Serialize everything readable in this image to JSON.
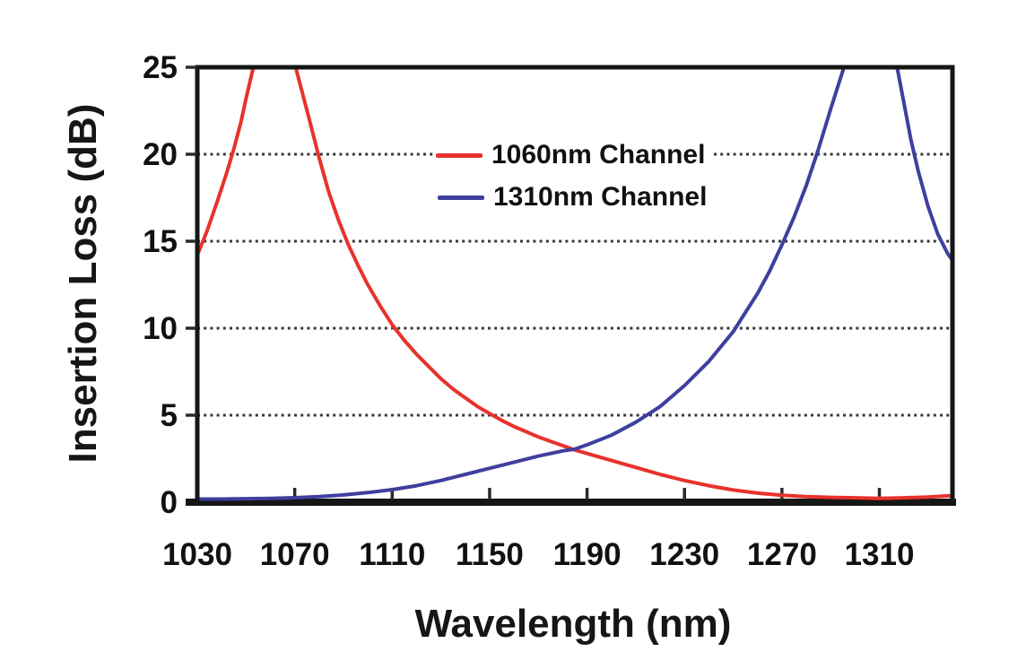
{
  "chart_data": {
    "type": "line",
    "title": "",
    "xlabel": "Wavelength (nm)",
    "ylabel": "Insertion Loss (dB)",
    "xlim": [
      1030,
      1340
    ],
    "ylim": [
      0,
      25
    ],
    "x_ticks": [
      1030,
      1070,
      1110,
      1150,
      1190,
      1230,
      1270,
      1310
    ],
    "y_ticks": [
      0,
      5,
      10,
      15,
      20,
      25
    ],
    "grid": "horizontal dotted lines at 5,10,15,20 dB",
    "grid_color": "#383838",
    "axis_color": "#161616",
    "text_color": "#111111",
    "legend_position": "upper-center",
    "series": [
      {
        "name": "1060nm Channel",
        "color": "#e8322c",
        "x": [
          1030,
          1034,
          1038,
          1042,
          1045,
          1048,
          1050,
          1053,
          1056,
          1060,
          1064,
          1067,
          1070,
          1073,
          1076,
          1080,
          1084,
          1088,
          1092,
          1096,
          1100,
          1105,
          1110,
          1115,
          1120,
          1125,
          1130,
          1135,
          1140,
          1145,
          1150,
          1155,
          1160,
          1165,
          1170,
          1175,
          1180,
          1185,
          1190,
          1195,
          1200,
          1210,
          1220,
          1230,
          1240,
          1250,
          1260,
          1270,
          1280,
          1290,
          1300,
          1310,
          1320,
          1330,
          1336,
          1340
        ],
        "y": [
          14.2,
          15.6,
          17.2,
          18.9,
          20.3,
          21.9,
          23.2,
          25.0,
          27.2,
          30.0,
          28.5,
          26.5,
          25.2,
          23.6,
          22.0,
          19.8,
          17.8,
          16.2,
          14.8,
          13.6,
          12.5,
          11.3,
          10.2,
          9.3,
          8.5,
          7.8,
          7.1,
          6.5,
          6.0,
          5.5,
          5.1,
          4.7,
          4.35,
          4.05,
          3.75,
          3.5,
          3.25,
          3.0,
          2.8,
          2.6,
          2.4,
          2.0,
          1.6,
          1.25,
          0.95,
          0.7,
          0.52,
          0.4,
          0.32,
          0.28,
          0.25,
          0.22,
          0.25,
          0.3,
          0.35,
          0.38
        ]
      },
      {
        "name": "1310nm Channel",
        "color": "#3f3f9f",
        "x": [
          1030,
          1040,
          1050,
          1060,
          1070,
          1080,
          1090,
          1100,
          1110,
          1120,
          1130,
          1140,
          1150,
          1160,
          1170,
          1180,
          1185,
          1190,
          1200,
          1210,
          1220,
          1230,
          1240,
          1250,
          1255,
          1260,
          1265,
          1270,
          1275,
          1280,
          1285,
          1290,
          1295,
          1298,
          1302,
          1306,
          1310,
          1314,
          1317,
          1320,
          1323,
          1326,
          1330,
          1334,
          1338,
          1340
        ],
        "y": [
          0.18,
          0.18,
          0.2,
          0.22,
          0.26,
          0.32,
          0.42,
          0.55,
          0.72,
          0.95,
          1.25,
          1.6,
          1.95,
          2.3,
          2.65,
          2.95,
          3.05,
          3.3,
          3.85,
          4.6,
          5.5,
          6.7,
          8.1,
          9.8,
          10.9,
          12.0,
          13.3,
          14.8,
          16.4,
          18.2,
          20.3,
          22.6,
          24.8,
          26.5,
          28.5,
          29.5,
          30.0,
          27.5,
          25.2,
          23.0,
          20.8,
          19.0,
          17.0,
          15.4,
          14.3,
          13.9
        ]
      }
    ]
  }
}
